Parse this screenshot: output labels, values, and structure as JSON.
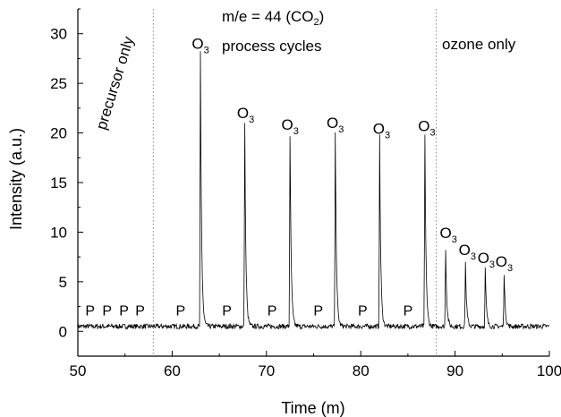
{
  "chart_data": {
    "type": "line",
    "title": "",
    "xlabel": "Time (m)",
    "ylabel": "Intensity (a.u.)",
    "xlim": [
      50,
      100
    ],
    "ylim": [
      -2.5,
      32.5
    ],
    "xticks": [
      50,
      60,
      70,
      80,
      90,
      100
    ],
    "yticks": [
      0,
      5,
      10,
      15,
      20,
      25,
      30
    ],
    "grid": false,
    "baseline": 0.5,
    "series": [
      {
        "peaks": [
          {
            "x": 63.0,
            "y": 28.0
          },
          {
            "x": 67.7,
            "y": 20.8
          },
          {
            "x": 72.5,
            "y": 19.8
          },
          {
            "x": 77.3,
            "y": 19.8
          },
          {
            "x": 82.0,
            "y": 19.6
          },
          {
            "x": 86.8,
            "y": 19.8
          },
          {
            "x": 89.0,
            "y": 8.4
          },
          {
            "x": 91.1,
            "y": 7.0
          },
          {
            "x": 93.2,
            "y": 6.3
          },
          {
            "x": 95.2,
            "y": 5.9
          }
        ]
      }
    ],
    "vlines": [
      58.0,
      88.0
    ],
    "annotations": {
      "mass": "m/e = 44 (CO",
      "mass_sub": "2",
      "mass_close": ")",
      "process": "process cycles",
      "ozone": "ozone only",
      "precursor": "precursor only",
      "o3_main": "O",
      "o3_sub": "3",
      "p_label": "P"
    },
    "o3_labels": [
      {
        "x": 63.0,
        "y": 28.5
      },
      {
        "x": 67.8,
        "y": 21.5
      },
      {
        "x": 72.5,
        "y": 20.3
      },
      {
        "x": 77.3,
        "y": 20.5
      },
      {
        "x": 82.2,
        "y": 19.9
      },
      {
        "x": 87.0,
        "y": 20.2
      },
      {
        "x": 89.3,
        "y": 9.4
      },
      {
        "x": 91.3,
        "y": 7.7
      },
      {
        "x": 93.3,
        "y": 6.9
      },
      {
        "x": 95.2,
        "y": 6.5
      }
    ],
    "p_labels": [
      {
        "x": 51.3,
        "y": 1.6
      },
      {
        "x": 53.1,
        "y": 1.6
      },
      {
        "x": 54.9,
        "y": 1.6
      },
      {
        "x": 56.6,
        "y": 1.6
      },
      {
        "x": 60.9,
        "y": 1.6
      },
      {
        "x": 65.8,
        "y": 1.6
      },
      {
        "x": 70.6,
        "y": 1.6
      },
      {
        "x": 75.5,
        "y": 1.6
      },
      {
        "x": 80.2,
        "y": 1.6
      },
      {
        "x": 85.0,
        "y": 1.6
      }
    ]
  }
}
